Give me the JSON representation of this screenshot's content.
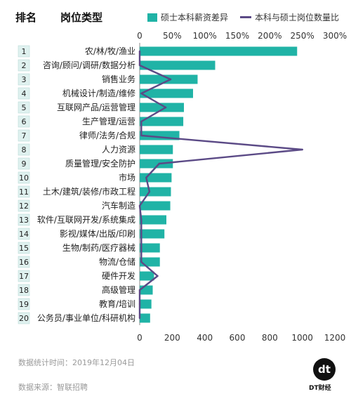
{
  "header": {
    "rank_label": "排名",
    "type_label": "岗位类型"
  },
  "legend": {
    "bar_label": "硕士本科薪资差异",
    "line_label": "本科与硕士岗位数量比"
  },
  "colors": {
    "bar": "#20b3a6",
    "line": "#5b4a86",
    "rank_box": "#dff1ef"
  },
  "chart_data": {
    "type": "bar",
    "orientation": "horizontal",
    "categories": [
      "农/林/牧/渔业",
      "咨询/顾问/调研/数据分析",
      "销售业务",
      "机械设计/制造/维修",
      "互联网产品/运营管理",
      "生产管理/运营",
      "律师/法务/合规",
      "人力资源",
      "质量管理/安全防护",
      "市场",
      "土木/建筑/装修/市政工程",
      "汽车制造",
      "软件/互联网开发/系统集成",
      "影视/媒体/出版/印刷",
      "生物/制药/医疗器械",
      "物流/仓储",
      "硬件开发",
      "高级管理",
      "教育/培训",
      "公务员/事业单位/科研机构"
    ],
    "ranks": [
      "1",
      "2",
      "3",
      "4",
      "5",
      "6",
      "7",
      "8",
      "9",
      "10",
      "11",
      "12",
      "13",
      "14",
      "15",
      "16",
      "17",
      "18",
      "19",
      "20"
    ],
    "series": [
      {
        "name": "硕士本科薪资差异",
        "type": "bar",
        "axis": "top",
        "values": [
          242,
          116,
          89,
          82,
          68,
          67,
          61,
          51,
          51,
          49,
          48,
          47,
          41,
          38,
          31,
          31,
          22,
          20,
          18,
          16
        ]
      },
      {
        "name": "本科与硕士岗位数量比",
        "type": "line",
        "axis": "bottom",
        "values": [
          0,
          0,
          190,
          10,
          160,
          10,
          10,
          1000,
          120,
          40,
          60,
          0,
          10,
          10,
          10,
          10,
          110,
          0,
          0,
          0
        ]
      }
    ],
    "top_axis": {
      "ticks": [
        "0",
        "50%",
        "100%",
        "150%",
        "200%",
        "250%",
        "300%"
      ],
      "range": [
        0,
        300
      ]
    },
    "bottom_axis": {
      "ticks": [
        "0",
        "200",
        "400",
        "600",
        "800",
        "1000",
        "1200"
      ],
      "range": [
        0,
        1200
      ]
    }
  },
  "footer": {
    "date_text": "数据统计时间：2019年12月04日",
    "source_text": "数据来源：智联招聘"
  },
  "logo": {
    "mark": "dt",
    "caption": "DT财经"
  }
}
